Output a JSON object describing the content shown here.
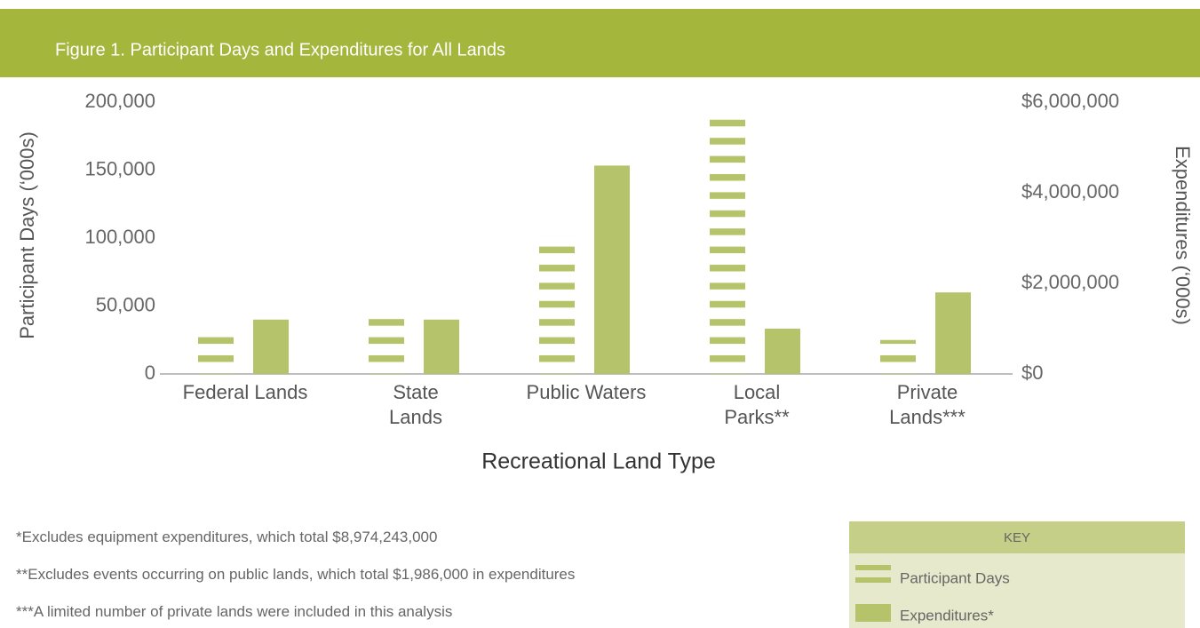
{
  "chart_data": {
    "type": "bar",
    "title": "Figure 1. Participant Days and Expenditures for All Lands",
    "xlabel": "Recreational Land Type",
    "ylabel": "Participant Days (‘000s)",
    "y2label": "Expenditures (‘000s)",
    "categories": [
      "Federal Lands",
      "State\nLands",
      "Public Waters",
      "Local\nParks**",
      "Private\nLands***"
    ],
    "series": [
      {
        "name": "Participant Days",
        "color": "#b5c46a",
        "pattern": "stripes",
        "values": [
          35000,
          48000,
          102000,
          195000,
          25000
        ]
      },
      {
        "name": "Expenditures*",
        "color": "#b5c46a",
        "axis": "y2",
        "values": [
          1200000,
          1200000,
          4600000,
          1000000,
          1800000
        ]
      }
    ],
    "ylim": [
      0,
      200000
    ],
    "yticks": [
      0,
      {
        "value": 50000,
        "label": "50,000"
      },
      {
        "value": 100000,
        "label": "100,000"
      },
      {
        "value": 150000,
        "label": "150,000"
      },
      {
        "value": 200000,
        "label": "200,000"
      }
    ],
    "y2lim": [
      0,
      6000000
    ],
    "y2ticks": [
      {
        "value": 0,
        "label": "$0"
      },
      {
        "value": 2000000,
        "label": "$2,000,000"
      },
      {
        "value": 4000000,
        "label": "$4,000,000"
      },
      {
        "value": 6000000,
        "label": "$6,000,000"
      }
    ],
    "legend_title": "KEY",
    "notes": [
      "*Excludes equipment expenditures, which total $8,974,243,000",
      "**Excludes events occurring on public lands, which total $1,986,000 in expenditures",
      "***A limited number of private lands were included in this analysis"
    ]
  }
}
